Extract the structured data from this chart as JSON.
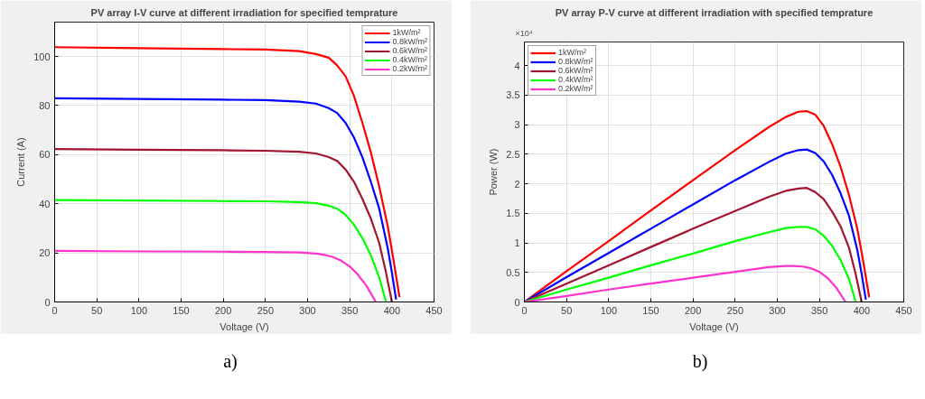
{
  "chart_data": [
    {
      "type": "line",
      "title": "PV array I-V curve at different irradiation for specified temprature",
      "xlabel": "Voltage (V)",
      "ylabel": "Current (A)",
      "xlim": [
        0,
        450
      ],
      "xticks": [
        0,
        50,
        100,
        150,
        200,
        250,
        300,
        350,
        400,
        450
      ],
      "ylim": [
        0,
        114
      ],
      "yticks": [
        0,
        20,
        40,
        60,
        80,
        100
      ],
      "grid": true,
      "legend": "top right",
      "annotations": [
        "a)"
      ],
      "series": [
        {
          "name": "1kW/m²",
          "color": "#ff0000",
          "x": [
            0,
            100,
            200,
            250,
            290,
            310,
            325,
            335,
            345,
            355,
            365,
            375,
            385,
            395,
            402,
            409
          ],
          "values": [
            103.8,
            103.4,
            103.0,
            102.8,
            102.2,
            101.0,
            99.5,
            96.4,
            92,
            84,
            73,
            61,
            47,
            31,
            17,
            2
          ]
        },
        {
          "name": "0.8kW/m²",
          "color": "#0000ff",
          "x": [
            0,
            100,
            200,
            250,
            290,
            310,
            325,
            335,
            345,
            355,
            365,
            375,
            385,
            395,
            400,
            405
          ],
          "values": [
            83,
            82.7,
            82.4,
            82.2,
            81.6,
            80.8,
            79,
            77,
            73,
            67,
            59,
            49,
            38,
            22,
            12,
            1
          ]
        },
        {
          "name": "0.6kW/m²",
          "color": "#a2142f",
          "x": [
            0,
            100,
            200,
            250,
            290,
            310,
            325,
            335,
            345,
            355,
            365,
            375,
            385,
            393,
            400
          ],
          "values": [
            62.3,
            62.0,
            61.8,
            61.6,
            61.2,
            60.5,
            59,
            57.5,
            54,
            49,
            42,
            34,
            24,
            12,
            0
          ]
        },
        {
          "name": "0.4kW/m²",
          "color": "#00ff00",
          "x": [
            0,
            100,
            200,
            250,
            290,
            310,
            325,
            335,
            345,
            355,
            365,
            375,
            385,
            393
          ],
          "values": [
            41.5,
            41.3,
            41.1,
            41,
            40.7,
            40.2,
            39.2,
            38,
            35.5,
            31.5,
            26,
            19,
            10,
            0
          ]
        },
        {
          "name": "0.2kW/m²",
          "color": "#ff33cc",
          "x": [
            0,
            100,
            200,
            250,
            290,
            310,
            320,
            330,
            340,
            350,
            360,
            370,
            381
          ],
          "values": [
            20.8,
            20.6,
            20.5,
            20.4,
            20.2,
            19.7,
            19.2,
            18.3,
            16.8,
            14.5,
            11,
            6.5,
            0
          ]
        }
      ]
    },
    {
      "type": "line",
      "title": "PV array P-V curve at different irradiation with specified temprature",
      "xlabel": "Voltage (V)",
      "ylabel": "Power (W)",
      "xlim": [
        0,
        450
      ],
      "xticks": [
        0,
        50,
        100,
        150,
        200,
        250,
        300,
        350,
        400,
        450
      ],
      "ylim": [
        0,
        4.4
      ],
      "yticks": [
        0,
        0.5,
        1,
        1.5,
        2,
        2.5,
        3,
        3.5,
        4
      ],
      "grid": true,
      "legend": "top left",
      "annotations": [
        "×10⁴",
        "b)"
      ],
      "series": [
        {
          "name": "1kW/m²",
          "color": "#ff0000",
          "x": [
            0,
            50,
            100,
            150,
            200,
            250,
            290,
            310,
            325,
            335,
            345,
            355,
            365,
            375,
            385,
            395,
            402,
            409
          ],
          "values": [
            0,
            0.52,
            1.03,
            1.55,
            2.06,
            2.57,
            2.96,
            3.13,
            3.22,
            3.23,
            3.17,
            2.98,
            2.67,
            2.29,
            1.81,
            1.23,
            0.68,
            0.08
          ]
        },
        {
          "name": "0.8kW/m²",
          "color": "#0000ff",
          "x": [
            0,
            50,
            100,
            150,
            200,
            250,
            290,
            310,
            325,
            335,
            345,
            355,
            365,
            375,
            385,
            395,
            400,
            405
          ],
          "values": [
            0,
            0.42,
            0.83,
            1.24,
            1.65,
            2.06,
            2.37,
            2.51,
            2.57,
            2.58,
            2.52,
            2.38,
            2.15,
            1.84,
            1.46,
            0.87,
            0.48,
            0.04
          ]
        },
        {
          "name": "0.6kW/m²",
          "color": "#a2142f",
          "x": [
            0,
            50,
            100,
            150,
            200,
            250,
            290,
            310,
            325,
            335,
            345,
            355,
            365,
            375,
            385,
            393,
            400
          ],
          "values": [
            0,
            0.31,
            0.62,
            0.93,
            1.24,
            1.54,
            1.78,
            1.88,
            1.92,
            1.93,
            1.86,
            1.74,
            1.53,
            1.28,
            0.92,
            0.47,
            0
          ]
        },
        {
          "name": "0.4kW/m²",
          "color": "#00ff00",
          "x": [
            0,
            50,
            100,
            150,
            200,
            250,
            290,
            310,
            325,
            335,
            345,
            355,
            365,
            375,
            385,
            393
          ],
          "values": [
            0,
            0.21,
            0.41,
            0.62,
            0.82,
            1.03,
            1.18,
            1.25,
            1.27,
            1.27,
            1.23,
            1.12,
            0.95,
            0.71,
            0.39,
            0
          ]
        },
        {
          "name": "0.2kW/m²",
          "color": "#ff33cc",
          "x": [
            0,
            50,
            100,
            150,
            200,
            250,
            290,
            310,
            320,
            330,
            340,
            350,
            360,
            370,
            381
          ],
          "values": [
            0,
            0.1,
            0.21,
            0.31,
            0.41,
            0.51,
            0.59,
            0.61,
            0.61,
            0.6,
            0.57,
            0.51,
            0.4,
            0.24,
            0
          ]
        }
      ]
    }
  ]
}
